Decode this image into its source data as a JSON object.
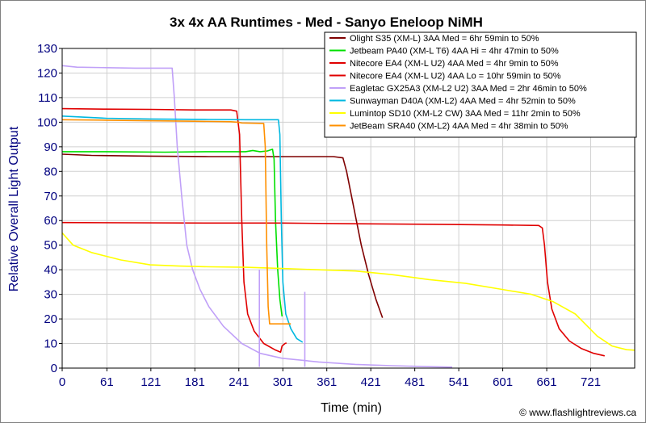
{
  "chart_data": {
    "type": "line",
    "title": "3x 4x AA Runtimes - Med - Sanyo Eneloop NiMH",
    "xlabel": "Time (min)",
    "ylabel": "Relative Overall Light Output",
    "xlim": [
      0,
      781
    ],
    "ylim": [
      0,
      130
    ],
    "xticks": [
      0,
      61,
      121,
      181,
      241,
      301,
      361,
      421,
      481,
      541,
      601,
      661,
      721
    ],
    "yticks": [
      0,
      10,
      20,
      30,
      40,
      50,
      60,
      70,
      80,
      90,
      100,
      110,
      120,
      130
    ],
    "grid": true,
    "legend_position": "top-right",
    "credit": "© www.flashlightreviews.ca",
    "series": [
      {
        "name": "Olight S35 (XM-L) 3AA Med = 6hr 59min to 50%",
        "color": "#7f0000",
        "points": [
          [
            0,
            87
          ],
          [
            40,
            86.5
          ],
          [
            120,
            86.2
          ],
          [
            200,
            86
          ],
          [
            300,
            86
          ],
          [
            370,
            86
          ],
          [
            383,
            85.5
          ],
          [
            388,
            80
          ],
          [
            398,
            65
          ],
          [
            408,
            50
          ],
          [
            418,
            38
          ],
          [
            428,
            28
          ],
          [
            437,
            20.5
          ]
        ]
      },
      {
        "name": "Jetbeam PA40 (XM-L T6) 4AA Hi = 4hr 47min to 50%",
        "color": "#00e000",
        "points": [
          [
            0,
            88
          ],
          [
            60,
            88
          ],
          [
            140,
            87.8
          ],
          [
            200,
            88
          ],
          [
            250,
            88
          ],
          [
            260,
            88.5
          ],
          [
            270,
            88
          ],
          [
            280,
            88.3
          ],
          [
            287,
            89
          ],
          [
            289,
            85
          ],
          [
            291,
            60
          ],
          [
            294,
            40
          ],
          [
            297,
            28
          ],
          [
            300,
            21
          ]
        ]
      },
      {
        "name": "Nitecore EA4 (XM-L U2) 4AA Med = 4hr 9min to 50%",
        "color": "#e00000",
        "points": [
          [
            0,
            105.5
          ],
          [
            60,
            105.3
          ],
          [
            120,
            105.2
          ],
          [
            180,
            105
          ],
          [
            230,
            105
          ],
          [
            238,
            104.5
          ],
          [
            242,
            95
          ],
          [
            245,
            60
          ],
          [
            248,
            35
          ],
          [
            253,
            22
          ],
          [
            262,
            15
          ],
          [
            275,
            10
          ],
          [
            290,
            7.5
          ],
          [
            298,
            6.5
          ],
          [
            300,
            9
          ],
          [
            304,
            10
          ],
          [
            306,
            10.2
          ]
        ]
      },
      {
        "name": "Nitecore EA4 (XM-L U2) 4AA Lo = 10hr 59min to 50%",
        "color": "#e00000",
        "points": [
          [
            0,
            59.2
          ],
          [
            100,
            59.1
          ],
          [
            200,
            59
          ],
          [
            300,
            59
          ],
          [
            400,
            58.7
          ],
          [
            500,
            58.5
          ],
          [
            600,
            58.2
          ],
          [
            650,
            58
          ],
          [
            655,
            57
          ],
          [
            658,
            50
          ],
          [
            662,
            35
          ],
          [
            668,
            24
          ],
          [
            678,
            16
          ],
          [
            692,
            11
          ],
          [
            708,
            8
          ],
          [
            725,
            6
          ],
          [
            740,
            5
          ]
        ]
      },
      {
        "name": "Eagletac GX25A3 (XM-L2 U2) 3AA Med = 2hr 46min to 50%",
        "color": "#c0a0f8",
        "points": [
          [
            0,
            123
          ],
          [
            20,
            122.4
          ],
          [
            60,
            122.2
          ],
          [
            100,
            122
          ],
          [
            150,
            122
          ],
          [
            153,
            110
          ],
          [
            157,
            90
          ],
          [
            163,
            70
          ],
          [
            170,
            50
          ],
          [
            178,
            40
          ],
          [
            188,
            32
          ],
          [
            200,
            25
          ],
          [
            220,
            17
          ],
          [
            245,
            10
          ],
          [
            270,
            6
          ],
          [
            300,
            4
          ],
          [
            350,
            2.5
          ],
          [
            400,
            1.5
          ],
          [
            450,
            1
          ],
          [
            500,
            0.6
          ],
          [
            532,
            0.4
          ]
        ],
        "spikes": [
          [
            269,
            0.5,
            40
          ],
          [
            331,
            0.5,
            31
          ]
        ]
      },
      {
        "name": "Sunwayman D40A (XM-L2) 4AA Med = 4hr 52min to 50%",
        "color": "#00b8e0",
        "points": [
          [
            0,
            102.5
          ],
          [
            60,
            101.6
          ],
          [
            120,
            101.3
          ],
          [
            200,
            101.1
          ],
          [
            250,
            101
          ],
          [
            295,
            101
          ],
          [
            297,
            95
          ],
          [
            299,
            60
          ],
          [
            301,
            35
          ],
          [
            305,
            22
          ],
          [
            312,
            16
          ],
          [
            320,
            12
          ],
          [
            328,
            10.5
          ]
        ]
      },
      {
        "name": "Lumintop SD10 (XM-L2 CW) 3AA Med = 11hr 2min to 50%",
        "color": "#ffff00",
        "points": [
          [
            0,
            55
          ],
          [
            15,
            50
          ],
          [
            40,
            47
          ],
          [
            80,
            44
          ],
          [
            120,
            42
          ],
          [
            160,
            41.5
          ],
          [
            200,
            41.2
          ],
          [
            250,
            41
          ],
          [
            300,
            40.5
          ],
          [
            350,
            40
          ],
          [
            400,
            39.5
          ],
          [
            450,
            38
          ],
          [
            500,
            36
          ],
          [
            550,
            34.5
          ],
          [
            600,
            32
          ],
          [
            640,
            30
          ],
          [
            670,
            27
          ],
          [
            700,
            22
          ],
          [
            730,
            13
          ],
          [
            750,
            9
          ],
          [
            770,
            7.5
          ],
          [
            781,
            7.3
          ]
        ]
      },
      {
        "name": "JetBeam SRA40 (XM-L2) 4AA Med = 4hr 38min to 50%",
        "color": "#ff9000",
        "points": [
          [
            0,
            101
          ],
          [
            60,
            100.8
          ],
          [
            120,
            100.6
          ],
          [
            180,
            100.4
          ],
          [
            230,
            100.2
          ],
          [
            240,
            100
          ],
          [
            245,
            99.7
          ],
          [
            275,
            99.5
          ],
          [
            277,
            90
          ],
          [
            279,
            50
          ],
          [
            281,
            25
          ],
          [
            283,
            18
          ],
          [
            300,
            18
          ],
          [
            312,
            18
          ]
        ]
      }
    ]
  }
}
